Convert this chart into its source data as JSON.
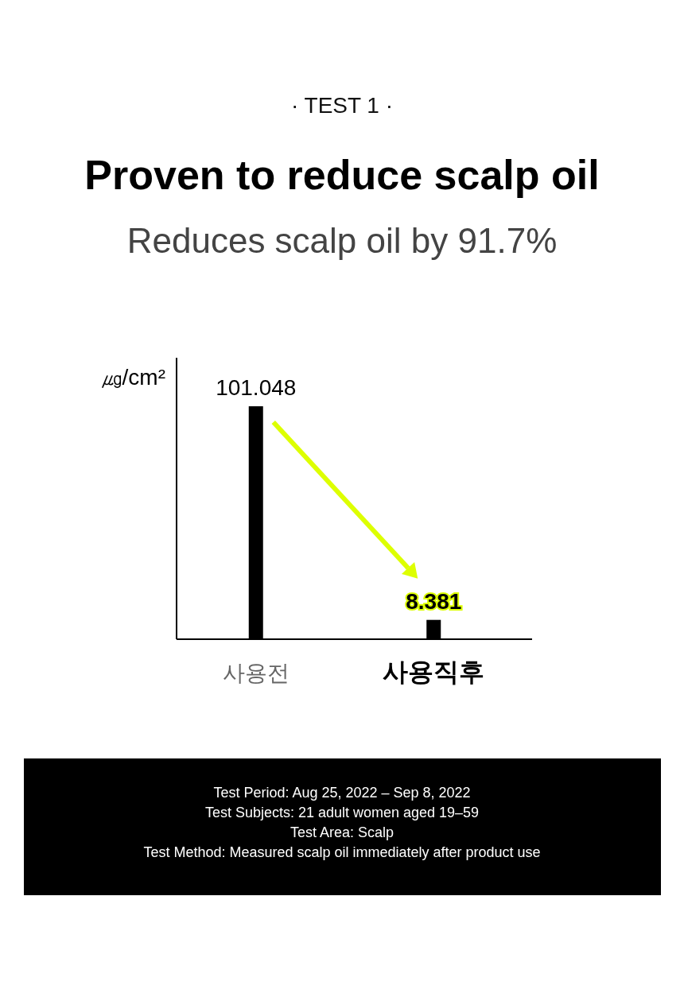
{
  "chart_data": {
    "type": "bar",
    "title": "Proven to reduce scalp oil",
    "subtitle": "Reduces scalp oil by 91.7%",
    "ylabel": "㎍/cm²",
    "categories": [
      "사용전",
      "사용직후"
    ],
    "values": [
      101.048,
      8.381
    ],
    "color": "#000000",
    "data_labels": true,
    "annotations": [
      "· TEST 1 ·",
      "Test Period: Aug 25, 2022 – Sep 8, 2022",
      "Test Subjects: 21 adult women aged 19–59",
      "Test Area: Scalp",
      "Test Method: Measured scalp oil immediately after product use"
    ]
  }
}
